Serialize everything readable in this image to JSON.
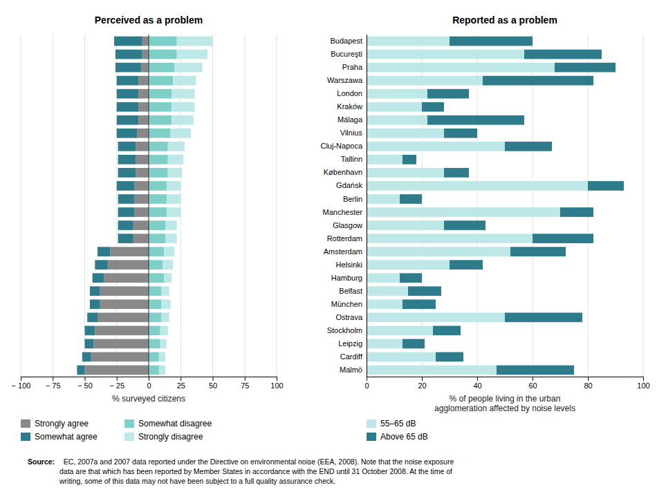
{
  "chart_data": [
    {
      "type": "bar",
      "orientation": "horizontal",
      "stacked": true,
      "grid": true,
      "legend": "lower left",
      "tick_labels": "x",
      "title": "Perceived as a problem",
      "xlabel": "% surveyed citizens",
      "categories": [
        "Budapest",
        "Bucureşti",
        "Praha",
        "Warszawa",
        "London",
        "Kraków",
        "Málaga",
        "Vilnius",
        "Cluj-Napoca",
        "Tallinn",
        "København",
        "Gdańsk",
        "Berlin",
        "Manchester",
        "Glasgow",
        "Rotterdam",
        "Amsterdam",
        "Helsinki",
        "Hamburg",
        "Belfast",
        "München",
        "Ostrava",
        "Stockholm",
        "Leipzig",
        "Cardiff",
        "Malmö"
      ],
      "series": [
        {
          "name": "Strongly agree",
          "color": "#888888",
          "values": [
            -5,
            -5,
            -6,
            -8,
            -8,
            -8,
            -8,
            -9,
            -10,
            -10,
            -10,
            -11,
            -11,
            -11,
            -12,
            -12,
            -30,
            -32,
            -35,
            -38,
            -38,
            -40,
            -42,
            -43,
            -45,
            -50
          ]
        },
        {
          "name": "Somewhat agree",
          "color": "#2E7B8C",
          "values": [
            -22,
            -21,
            -20,
            -17,
            -17,
            -17,
            -17,
            -16,
            -14,
            -14,
            -14,
            -14,
            -13,
            -13,
            -12,
            -12,
            -10,
            -10,
            -9,
            -8,
            -8,
            -8,
            -8,
            -7,
            -7,
            -6
          ]
        },
        {
          "name": "Somewhat disagree",
          "color": "#7DCFC8",
          "values": [
            22,
            22,
            20,
            19,
            18,
            18,
            18,
            17,
            15,
            15,
            15,
            14,
            14,
            14,
            13,
            13,
            12,
            11,
            12,
            10,
            10,
            10,
            9,
            9,
            8,
            8
          ]
        },
        {
          "name": "Strongly disagree",
          "color": "#BEE8E8",
          "values": [
            28,
            24,
            22,
            18,
            18,
            18,
            17,
            16,
            13,
            12,
            11,
            11,
            11,
            11,
            9,
            9,
            8,
            8,
            6,
            6,
            7,
            6,
            6,
            5,
            5,
            5
          ]
        }
      ],
      "xlim": [
        -100,
        100
      ],
      "xticks": [
        {
          "value": -100,
          "label": "− 100"
        },
        {
          "value": -75,
          "label": "− 75"
        },
        {
          "value": -50,
          "label": "− 50"
        },
        {
          "value": -25,
          "label": "− 25"
        },
        0,
        25,
        50,
        75,
        100
      ],
      "annotations": [
        "Source:",
        "  EC, 2007a and 2007 data reported under the Directive on environmental noise (EEA, 2008). Note that the noise exposure\ndata are that which has been reported by Member States in accordance with the END until 31 October 2008. At the time of\nwriting, some of this data may not have been subject to a full quality assurance check."
      ]
    },
    {
      "type": "bar",
      "orientation": "horizontal",
      "stacked": true,
      "grid": true,
      "legend": "lower left",
      "title": "Reported as a problem",
      "xlabel": "% of people living in the urban\nagglomeration affected by noise levels",
      "categories": [
        "Budapest",
        "Bucureşti",
        "Praha",
        "Warszawa",
        "London",
        "Kraków",
        "Málaga",
        "Vilnius",
        "Cluj-Napoca",
        "Tallinn",
        "København",
        "Gdańsk",
        "Berlin",
        "Manchester",
        "Glasgow",
        "Rotterdam",
        "Amsterdam",
        "Helsinki",
        "Hamburg",
        "Belfast",
        "München",
        "Ostrava",
        "Stockholm",
        "Leipzig",
        "Cardiff",
        "Malmö"
      ],
      "series": [
        {
          "name": "55–65 dB",
          "color": "#BEE8E8",
          "values": [
            30,
            57,
            68,
            42,
            22,
            20,
            22,
            28,
            50,
            13,
            28,
            80,
            12,
            70,
            28,
            60,
            52,
            30,
            12,
            15,
            13,
            50,
            24,
            13,
            25,
            47
          ]
        },
        {
          "name": "Above 65 dB",
          "color": "#2E7B8C",
          "values": [
            30,
            28,
            22,
            40,
            15,
            8,
            35,
            12,
            17,
            5,
            9,
            13,
            8,
            12,
            15,
            22,
            20,
            12,
            8,
            12,
            12,
            28,
            10,
            8,
            10,
            28
          ]
        }
      ],
      "xlim": [
        0,
        100
      ],
      "xticks": [
        0,
        20,
        40,
        60,
        80,
        100
      ]
    }
  ]
}
